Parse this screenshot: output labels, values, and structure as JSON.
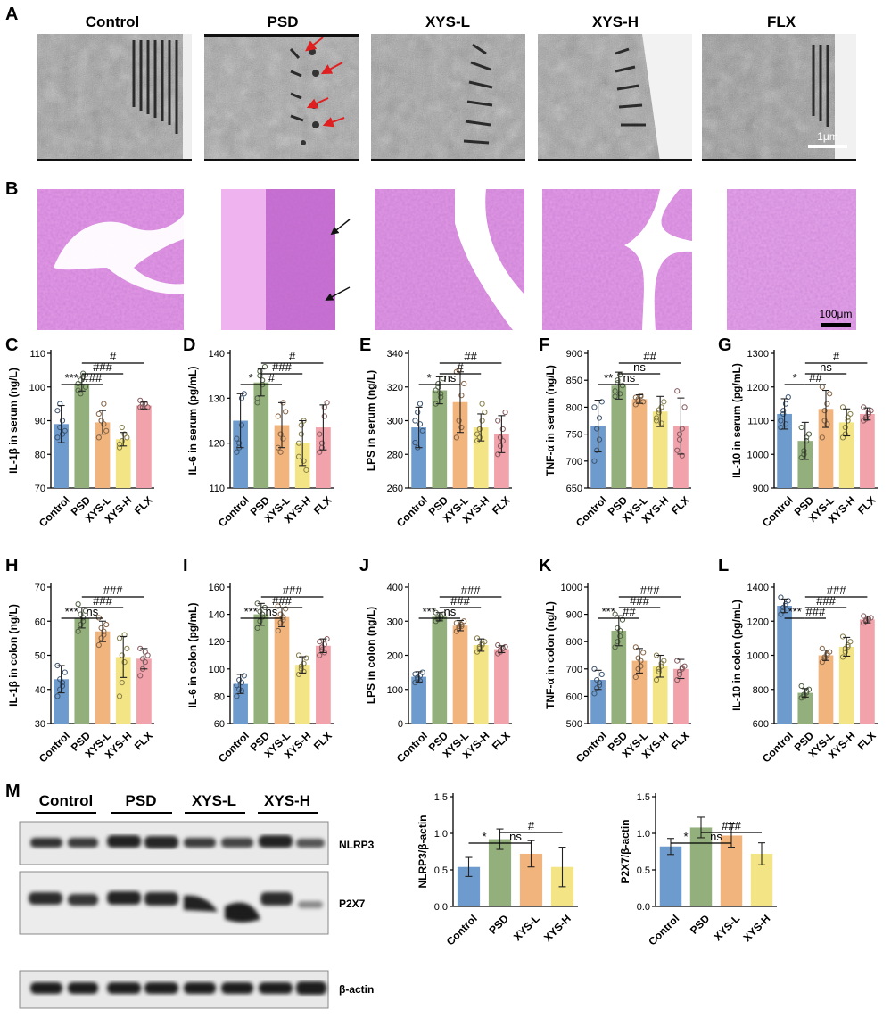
{
  "panel_letters": [
    "A",
    "B",
    "C",
    "D",
    "E",
    "F",
    "G",
    "H",
    "I",
    "J",
    "K",
    "L",
    "M"
  ],
  "groups": [
    "Control",
    "PSD",
    "XYS-L",
    "XYS-H",
    "FLX"
  ],
  "scale_bars": {
    "tem": "1μm",
    "he": "100μm"
  },
  "colors": {
    "Control": "#6e9bce",
    "PSD": "#93b07c",
    "XYS-L": "#f1b47d",
    "XYS-H": "#f3e585",
    "FLX": "#f1a2aa"
  },
  "blot": {
    "groups": [
      "Control",
      "PSD",
      "XYS-L",
      "XYS-H"
    ],
    "proteins": [
      "NLRP3",
      "P2X7",
      "β-actin"
    ]
  },
  "chart_data": [
    {
      "panel": "C",
      "type": "bar",
      "categories": [
        "Control",
        "PSD",
        "XYS-L",
        "XYS-H",
        "FLX"
      ],
      "values": [
        89,
        101,
        89.5,
        84.5,
        94.5
      ],
      "errors": [
        5.5,
        2.2,
        3.5,
        2,
        1
      ],
      "ylabel": "IL-1β in serum (ng/L)",
      "ylim": [
        70,
        110
      ],
      "yticks": [
        70,
        80,
        90,
        100,
        110
      ],
      "points": [
        [
          85,
          88,
          90,
          87,
          93,
          95,
          86
        ],
        [
          99,
          102,
          104,
          100,
          101,
          98,
          103
        ],
        [
          92,
          90,
          95,
          87,
          85,
          90,
          89
        ],
        [
          83,
          84,
          86,
          85,
          82,
          88
        ],
        [
          94,
          95,
          95,
          94,
          96,
          94,
          95
        ]
      ],
      "sig": [
        "***",
        "###",
        "###",
        "#"
      ]
    },
    {
      "panel": "D",
      "type": "bar",
      "categories": [
        "Control",
        "PSD",
        "XYS-L",
        "XYS-H",
        "FLX"
      ],
      "values": [
        125,
        133.5,
        124,
        120,
        123.5
      ],
      "errors": [
        6,
        3,
        5,
        5,
        5
      ],
      "ylabel": "IL-6  in serum (pg/mL)",
      "ylim": [
        110,
        140
      ],
      "yticks": [
        110,
        120,
        130,
        140
      ],
      "points": [
        [
          118,
          120,
          130,
          131,
          121,
          119,
          124
        ],
        [
          130,
          136,
          133,
          137,
          129,
          135,
          134
        ],
        [
          119,
          122,
          129,
          127,
          126,
          118,
          121
        ],
        [
          117,
          122,
          125,
          114,
          120,
          124,
          116
        ],
        [
          118,
          119,
          128,
          129,
          122,
          120,
          126
        ]
      ],
      "sig": [
        "*",
        "#",
        "###",
        "#"
      ]
    },
    {
      "panel": "E",
      "type": "bar",
      "categories": [
        "Control",
        "PSD",
        "XYS-L",
        "XYS-H",
        "FLX"
      ],
      "values": [
        296,
        318,
        311,
        296,
        292
      ],
      "errors": [
        12,
        8,
        18,
        8,
        11
      ],
      "ylabel": "LPS in serum (ng/L)",
      "ylim": [
        260,
        340
      ],
      "yticks": [
        260,
        280,
        300,
        320,
        340
      ],
      "points": [
        [
          287,
          305,
          298,
          294,
          300,
          284,
          310
        ],
        [
          310,
          322,
          316,
          325,
          318,
          320,
          314
        ],
        [
          290,
          300,
          315,
          322,
          329,
          330,
          296
        ],
        [
          288,
          295,
          300,
          305,
          292,
          290,
          310
        ],
        [
          280,
          285,
          295,
          305,
          300,
          290,
          288
        ]
      ],
      "sig": [
        "*",
        "ns",
        "#",
        "##"
      ]
    },
    {
      "panel": "F",
      "type": "bar",
      "categories": [
        "Control",
        "PSD",
        "XYS-L",
        "XYS-H",
        "FLX"
      ],
      "values": [
        765,
        840,
        815,
        792,
        765
      ],
      "errors": [
        48,
        25,
        8,
        28,
        52
      ],
      "ylabel": "TNF-α  in serum (ng/L)",
      "ylim": [
        650,
        900
      ],
      "yticks": [
        650,
        700,
        750,
        800,
        850,
        900
      ],
      "points": [
        [
          700,
          720,
          780,
          810,
          800,
          760,
          740
        ],
        [
          820,
          850,
          860,
          840,
          830,
          845,
          825
        ],
        [
          805,
          815,
          820,
          810,
          818,
          812,
          822
        ],
        [
          780,
          790,
          800,
          810,
          775,
          795,
          770
        ],
        [
          720,
          740,
          760,
          800,
          830,
          750,
          710
        ]
      ],
      "sig": [
        "**",
        "ns",
        "ns",
        "##"
      ]
    },
    {
      "panel": "G",
      "type": "bar",
      "categories": [
        "Control",
        "PSD",
        "XYS-L",
        "XYS-H",
        "FLX"
      ],
      "values": [
        1120,
        1040,
        1135,
        1095,
        1120
      ],
      "errors": [
        45,
        55,
        55,
        40,
        18
      ],
      "ylabel": "IL-10  in serum (pg/mL)",
      "ylim": [
        900,
        1300
      ],
      "yticks": [
        900,
        1000,
        1100,
        1200,
        1300
      ],
      "points": [
        [
          1080,
          1120,
          1150,
          1170,
          1100,
          1130,
          1090
        ],
        [
          990,
          1010,
          1040,
          1060,
          1080,
          1000,
          1050
        ],
        [
          1050,
          1100,
          1150,
          1180,
          1200,
          1130,
          1090
        ],
        [
          1050,
          1080,
          1100,
          1120,
          1140,
          1060,
          1110
        ],
        [
          1100,
          1110,
          1120,
          1130,
          1140,
          1105,
          1125
        ]
      ],
      "sig": [
        "*",
        "##",
        "ns",
        "#"
      ]
    },
    {
      "panel": "H",
      "type": "bar",
      "categories": [
        "Control",
        "PSD",
        "XYS-L",
        "XYS-H",
        "FLX"
      ],
      "values": [
        43,
        61,
        57,
        49.5,
        49
      ],
      "errors": [
        4,
        3,
        3,
        6,
        3
      ],
      "ylabel": "IL-1β in colon (ng/L)",
      "ylim": [
        30,
        70
      ],
      "yticks": [
        30,
        40,
        50,
        60,
        70
      ],
      "points": [
        [
          38,
          40,
          42,
          45,
          47,
          43,
          41
        ],
        [
          57,
          59,
          61,
          63,
          65,
          62,
          60
        ],
        [
          53,
          55,
          57,
          59,
          61,
          58,
          56
        ],
        [
          38,
          42,
          48,
          52,
          55,
          50,
          56
        ],
        [
          44,
          46,
          48,
          50,
          52,
          49,
          51
        ]
      ],
      "sig": [
        "***",
        "ns",
        "###",
        "###"
      ]
    },
    {
      "panel": "I",
      "type": "bar",
      "categories": [
        "Control",
        "PSD",
        "XYS-L",
        "XYS-H",
        "FLX"
      ],
      "values": [
        89,
        140,
        138,
        103,
        117
      ],
      "errors": [
        7,
        8,
        7,
        6,
        5
      ],
      "ylabel": "IL-6 in colon (pg/mL)",
      "ylim": [
        60,
        160
      ],
      "yticks": [
        60,
        80,
        100,
        120,
        140,
        160
      ],
      "points": [
        [
          80,
          85,
          90,
          95,
          88,
          92,
          84
        ],
        [
          130,
          135,
          140,
          145,
          148,
          142,
          138
        ],
        [
          128,
          134,
          138,
          144,
          146,
          140,
          136
        ],
        [
          96,
          100,
          104,
          108,
          110,
          102,
          98
        ],
        [
          110,
          114,
          118,
          122,
          120,
          116,
          112
        ]
      ],
      "sig": [
        "***",
        "ns",
        "###",
        "###"
      ]
    },
    {
      "panel": "J",
      "type": "bar",
      "categories": [
        "Control",
        "PSD",
        "XYS-L",
        "XYS-H",
        "FLX"
      ],
      "values": [
        137,
        313,
        287,
        230,
        218
      ],
      "errors": [
        15,
        12,
        15,
        18,
        10
      ],
      "ylabel": "LPS in colon (ng/L)",
      "ylim": [
        0,
        400
      ],
      "yticks": [
        0,
        100,
        200,
        300,
        400
      ],
      "points": [
        [
          120,
          130,
          140,
          150,
          145,
          135,
          125
        ],
        [
          300,
          305,
          315,
          320,
          325,
          310,
          310
        ],
        [
          270,
          280,
          290,
          300,
          295,
          285,
          285
        ],
        [
          210,
          220,
          230,
          240,
          250,
          225,
          235
        ],
        [
          205,
          210,
          220,
          225,
          230,
          215,
          220
        ]
      ],
      "sig": [
        "***",
        "ns",
        "###",
        "###"
      ]
    },
    {
      "panel": "K",
      "type": "bar",
      "categories": [
        "Control",
        "PSD",
        "XYS-L",
        "XYS-H",
        "FLX"
      ],
      "values": [
        660,
        840,
        730,
        710,
        700
      ],
      "errors": [
        35,
        55,
        45,
        40,
        35
      ],
      "ylabel": "TNF-α  in colon (ng/L)",
      "ylim": [
        500,
        1000
      ],
      "yticks": [
        500,
        600,
        700,
        800,
        900,
        1000
      ],
      "points": [
        [
          610,
          630,
          650,
          680,
          700,
          660,
          640
        ],
        [
          780,
          800,
          840,
          880,
          900,
          850,
          820
        ],
        [
          670,
          700,
          730,
          760,
          780,
          740,
          710
        ],
        [
          660,
          690,
          710,
          730,
          750,
          700,
          720
        ],
        [
          660,
          680,
          700,
          710,
          730,
          690,
          705
        ]
      ],
      "sig": [
        "***",
        "##",
        "###",
        "###"
      ]
    },
    {
      "panel": "L",
      "type": "bar",
      "categories": [
        "Control",
        "PSD",
        "XYS-L",
        "XYS-H",
        "FLX"
      ],
      "values": [
        1290,
        780,
        1000,
        1050,
        1210
      ],
      "errors": [
        40,
        25,
        30,
        55,
        20
      ],
      "ylabel": "IL-10 in colon (pg/mL)",
      "ylim": [
        600,
        1400
      ],
      "yticks": [
        600,
        800,
        1000,
        1200,
        1400
      ],
      "points": [
        [
          1240,
          1260,
          1290,
          1320,
          1340,
          1280,
          1300
        ],
        [
          750,
          760,
          780,
          800,
          820,
          770,
          790
        ],
        [
          960,
          980,
          1000,
          1020,
          1040,
          990,
          1010
        ],
        [
          990,
          1020,
          1050,
          1080,
          1110,
          1040,
          1060
        ],
        [
          1190,
          1200,
          1210,
          1220,
          1230,
          1205,
          1215
        ]
      ],
      "sig": [
        "***",
        "###",
        "###",
        "###"
      ]
    },
    {
      "panel": "M1",
      "type": "bar",
      "categories": [
        "Control",
        "PSD",
        "XYS-L",
        "XYS-H"
      ],
      "values": [
        0.54,
        0.92,
        0.72,
        0.54
      ],
      "errors": [
        0.13,
        0.14,
        0.18,
        0.27
      ],
      "ylabel": "NLRP3/β-actin",
      "ylim": [
        0,
        1.5
      ],
      "yticks": [
        0.0,
        0.5,
        1.0,
        1.5
      ],
      "sig": [
        "*",
        "ns",
        "#"
      ]
    },
    {
      "panel": "M2",
      "type": "bar",
      "categories": [
        "Control",
        "PSD",
        "XYS-L",
        "XYS-H"
      ],
      "values": [
        0.82,
        1.08,
        0.97,
        0.72
      ],
      "errors": [
        0.11,
        0.14,
        0.16,
        0.15
      ],
      "ylabel": "P2X7/β-actin",
      "ylim": [
        0,
        1.5
      ],
      "yticks": [
        0.0,
        0.5,
        1.0,
        1.5
      ],
      "sig": [
        "*",
        "ns",
        "###"
      ]
    }
  ]
}
